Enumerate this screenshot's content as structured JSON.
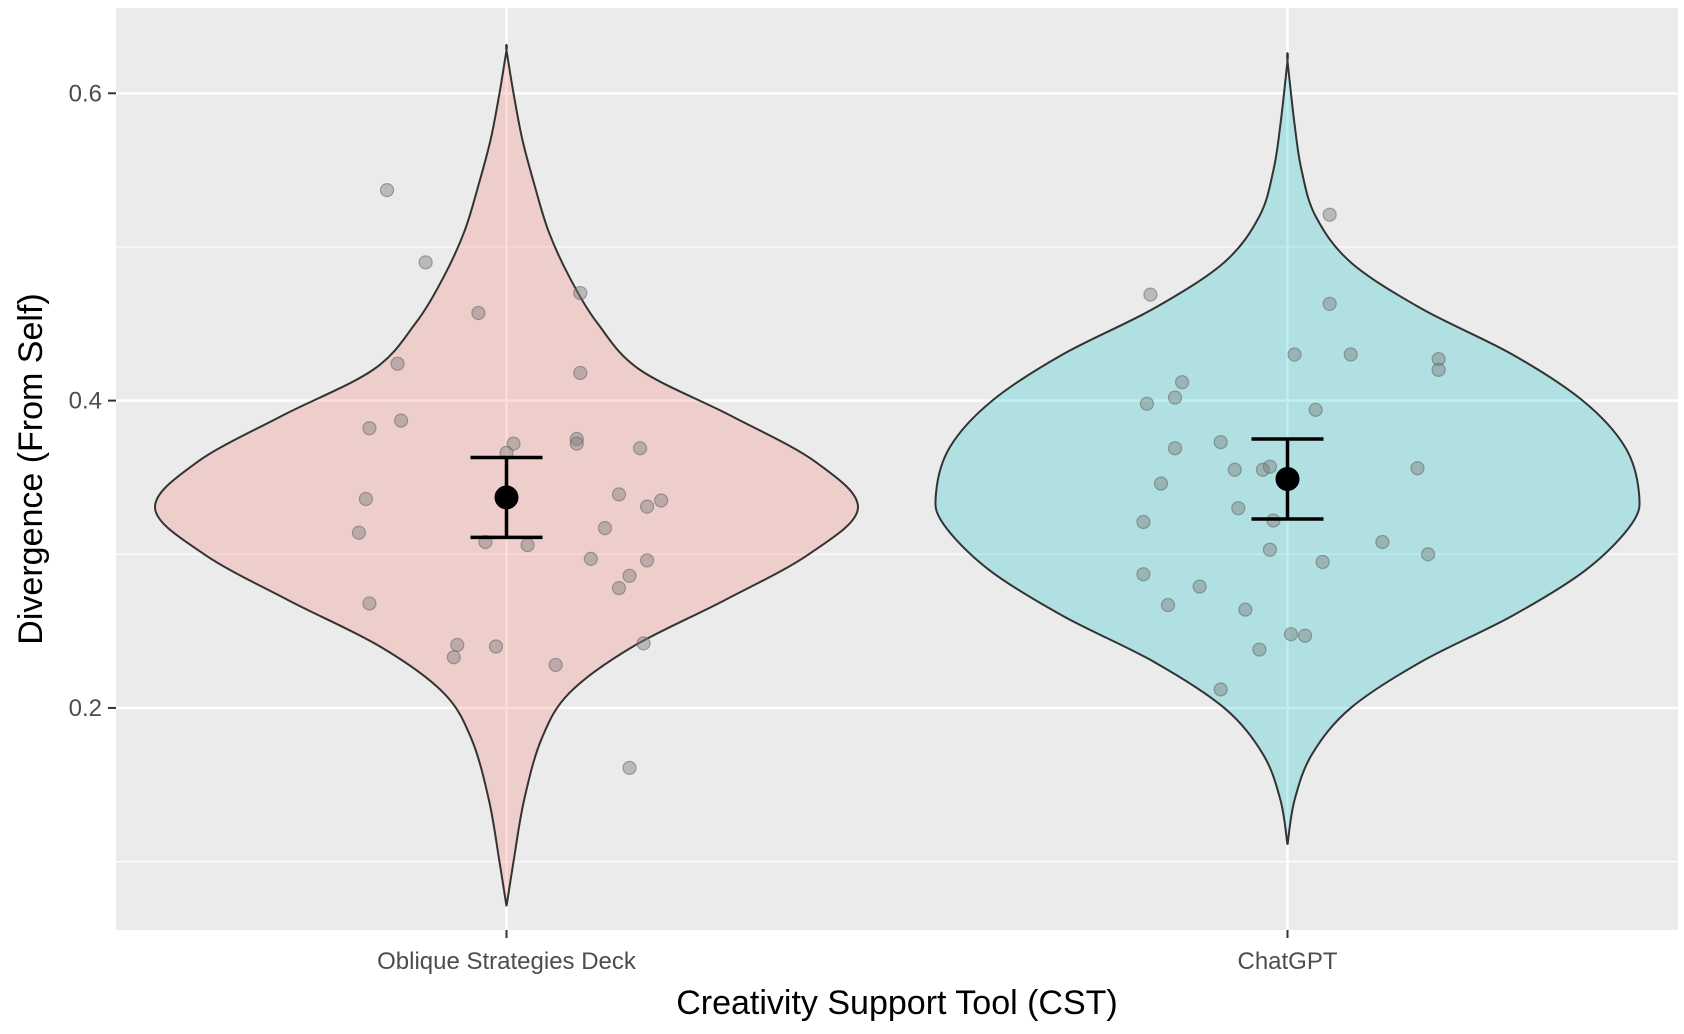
{
  "chart_data": {
    "type": "violin",
    "title": "",
    "xlabel": "Creativity Support Tool (CST)",
    "ylabel": "Divergence (From Self)",
    "ylim": [
      0.0555,
      0.6555
    ],
    "yticks": [
      0.2,
      0.4,
      0.6
    ],
    "grid": true,
    "legend": "none",
    "categories": [
      "Oblique Strategies Deck",
      "ChatGPT"
    ],
    "series": [
      {
        "category": "Oblique Strategies Deck",
        "fill_color": "#f8766d",
        "mean": 0.337,
        "ci_low": 0.311,
        "ci_high": 0.363,
        "violin_range": [
          0.071,
          0.628
        ],
        "density_profile": [
          [
            0.071,
            0.0
          ],
          [
            0.1,
            0.02
          ],
          [
            0.14,
            0.05
          ],
          [
            0.18,
            0.1
          ],
          [
            0.21,
            0.18
          ],
          [
            0.24,
            0.36
          ],
          [
            0.27,
            0.62
          ],
          [
            0.3,
            0.86
          ],
          [
            0.33,
            1.0
          ],
          [
            0.36,
            0.88
          ],
          [
            0.39,
            0.64
          ],
          [
            0.42,
            0.38
          ],
          [
            0.45,
            0.26
          ],
          [
            0.48,
            0.18
          ],
          [
            0.51,
            0.12
          ],
          [
            0.54,
            0.08
          ],
          [
            0.57,
            0.045
          ],
          [
            0.6,
            0.02
          ],
          [
            0.628,
            0.0
          ]
        ],
        "points": [
          [
            -0.34,
            0.537
          ],
          [
            -0.23,
            0.49
          ],
          [
            -0.08,
            0.457
          ],
          [
            0.21,
            0.47
          ],
          [
            -0.31,
            0.424
          ],
          [
            0.21,
            0.418
          ],
          [
            -0.3,
            0.387
          ],
          [
            -0.39,
            0.382
          ],
          [
            0.02,
            0.372
          ],
          [
            0.2,
            0.375
          ],
          [
            0.2,
            0.372
          ],
          [
            0.38,
            0.369
          ],
          [
            0.0,
            0.366
          ],
          [
            0.32,
            0.339
          ],
          [
            0.4,
            0.331
          ],
          [
            0.44,
            0.335
          ],
          [
            -0.4,
            0.336
          ],
          [
            -0.42,
            0.314
          ],
          [
            0.28,
            0.317
          ],
          [
            -0.06,
            0.308
          ],
          [
            0.06,
            0.306
          ],
          [
            0.24,
            0.297
          ],
          [
            0.4,
            0.296
          ],
          [
            0.35,
            0.286
          ],
          [
            0.32,
            0.278
          ],
          [
            -0.39,
            0.268
          ],
          [
            0.39,
            0.242
          ],
          [
            -0.14,
            0.241
          ],
          [
            -0.15,
            0.233
          ],
          [
            -0.03,
            0.24
          ],
          [
            0.14,
            0.228
          ],
          [
            0.35,
            0.161
          ]
        ]
      },
      {
        "category": "ChatGPT",
        "fill_color": "#00bfc4",
        "mean": 0.349,
        "ci_low": 0.323,
        "ci_high": 0.375,
        "violin_range": [
          0.111,
          0.621
        ],
        "density_profile": [
          [
            0.111,
            0.0
          ],
          [
            0.14,
            0.02
          ],
          [
            0.17,
            0.07
          ],
          [
            0.2,
            0.18
          ],
          [
            0.23,
            0.38
          ],
          [
            0.26,
            0.64
          ],
          [
            0.29,
            0.85
          ],
          [
            0.32,
            0.98
          ],
          [
            0.34,
            1.0
          ],
          [
            0.37,
            0.96
          ],
          [
            0.4,
            0.84
          ],
          [
            0.43,
            0.64
          ],
          [
            0.46,
            0.38
          ],
          [
            0.49,
            0.18
          ],
          [
            0.52,
            0.08
          ],
          [
            0.55,
            0.04
          ],
          [
            0.58,
            0.02
          ],
          [
            0.621,
            0.0
          ]
        ],
        "points": [
          [
            -0.39,
            0.469
          ],
          [
            0.12,
            0.521
          ],
          [
            0.12,
            0.463
          ],
          [
            0.02,
            0.43
          ],
          [
            0.18,
            0.43
          ],
          [
            0.43,
            0.427
          ],
          [
            0.43,
            0.42
          ],
          [
            -0.3,
            0.412
          ],
          [
            -0.32,
            0.402
          ],
          [
            -0.4,
            0.398
          ],
          [
            0.08,
            0.394
          ],
          [
            -0.19,
            0.373
          ],
          [
            -0.32,
            0.369
          ],
          [
            -0.15,
            0.355
          ],
          [
            -0.07,
            0.355
          ],
          [
            -0.05,
            0.357
          ],
          [
            -0.36,
            0.346
          ],
          [
            0.37,
            0.356
          ],
          [
            -0.14,
            0.33
          ],
          [
            -0.04,
            0.322
          ],
          [
            -0.41,
            0.321
          ],
          [
            -0.05,
            0.303
          ],
          [
            0.27,
            0.308
          ],
          [
            0.4,
            0.3
          ],
          [
            0.1,
            0.295
          ],
          [
            -0.41,
            0.287
          ],
          [
            -0.25,
            0.279
          ],
          [
            -0.34,
            0.267
          ],
          [
            -0.12,
            0.264
          ],
          [
            0.01,
            0.248
          ],
          [
            0.05,
            0.247
          ],
          [
            -0.08,
            0.238
          ],
          [
            -0.19,
            0.212
          ]
        ]
      }
    ]
  }
}
